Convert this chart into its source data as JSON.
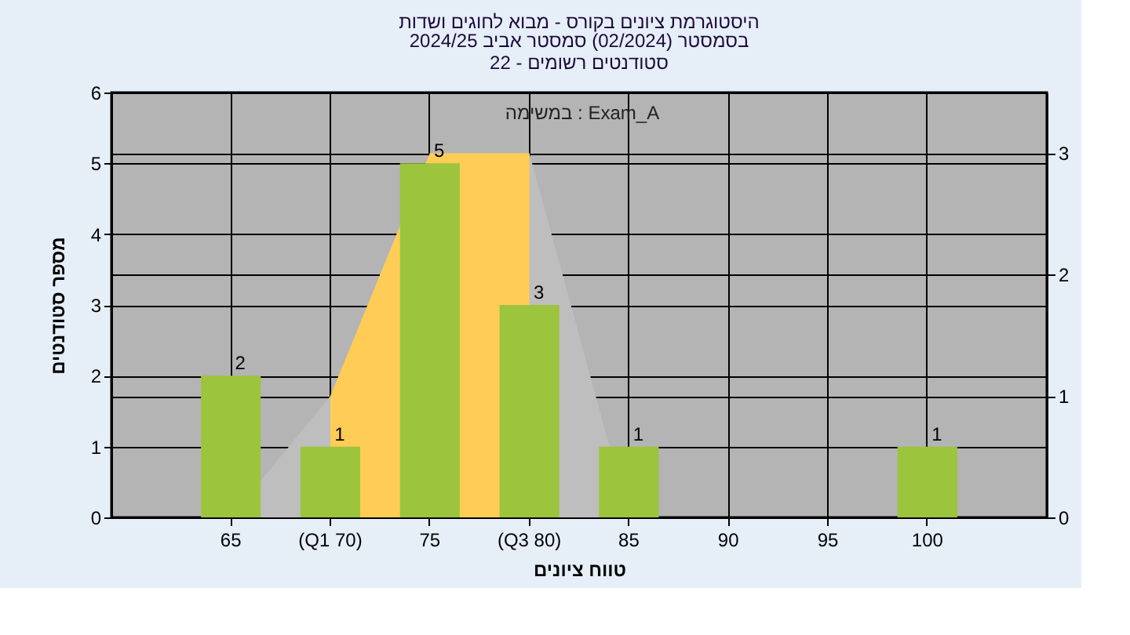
{
  "chart_data": {
    "type": "bar",
    "title": "היסטוגרמת ציונים בקורס - מבוא לחוגים ושדות",
    "subtitle": "בסמסטר  (02/2024)  סמסטר אביב 2024/25\nסטודנטים רשומים - 22",
    "categories": [
      "65",
      "(Q1 70)",
      "75",
      "(Q3 80)",
      "85",
      "90",
      "95",
      "100"
    ],
    "series": [
      {
        "type": "area",
        "axis": "y2",
        "color": "#bebebe",
        "values": [
          0,
          1,
          3,
          3,
          0,
          null,
          null,
          null
        ]
      },
      {
        "type": "area",
        "axis": "y2",
        "color": "#ffcc55",
        "values": [
          null,
          1,
          3,
          3,
          null,
          null,
          null,
          null
        ]
      },
      {
        "color": "#9cc43c",
        "values": [
          2,
          1,
          5,
          3,
          1,
          0,
          0,
          1
        ],
        "value_labels": [
          "2",
          "1",
          "5",
          "3",
          "1",
          null,
          null,
          "1"
        ]
      }
    ],
    "xlabel": "טווח ציונים",
    "ylabel": "מספר סטודנטים",
    "ylim": [
      0,
      6
    ],
    "yticks": [
      0,
      1,
      2,
      3,
      4,
      5,
      6
    ],
    "y2lim": [
      0,
      3.5
    ],
    "y2ticks": [
      0,
      1,
      2,
      3
    ],
    "grid": true,
    "annotations": [
      "במשימה : Exam_A"
    ]
  }
}
